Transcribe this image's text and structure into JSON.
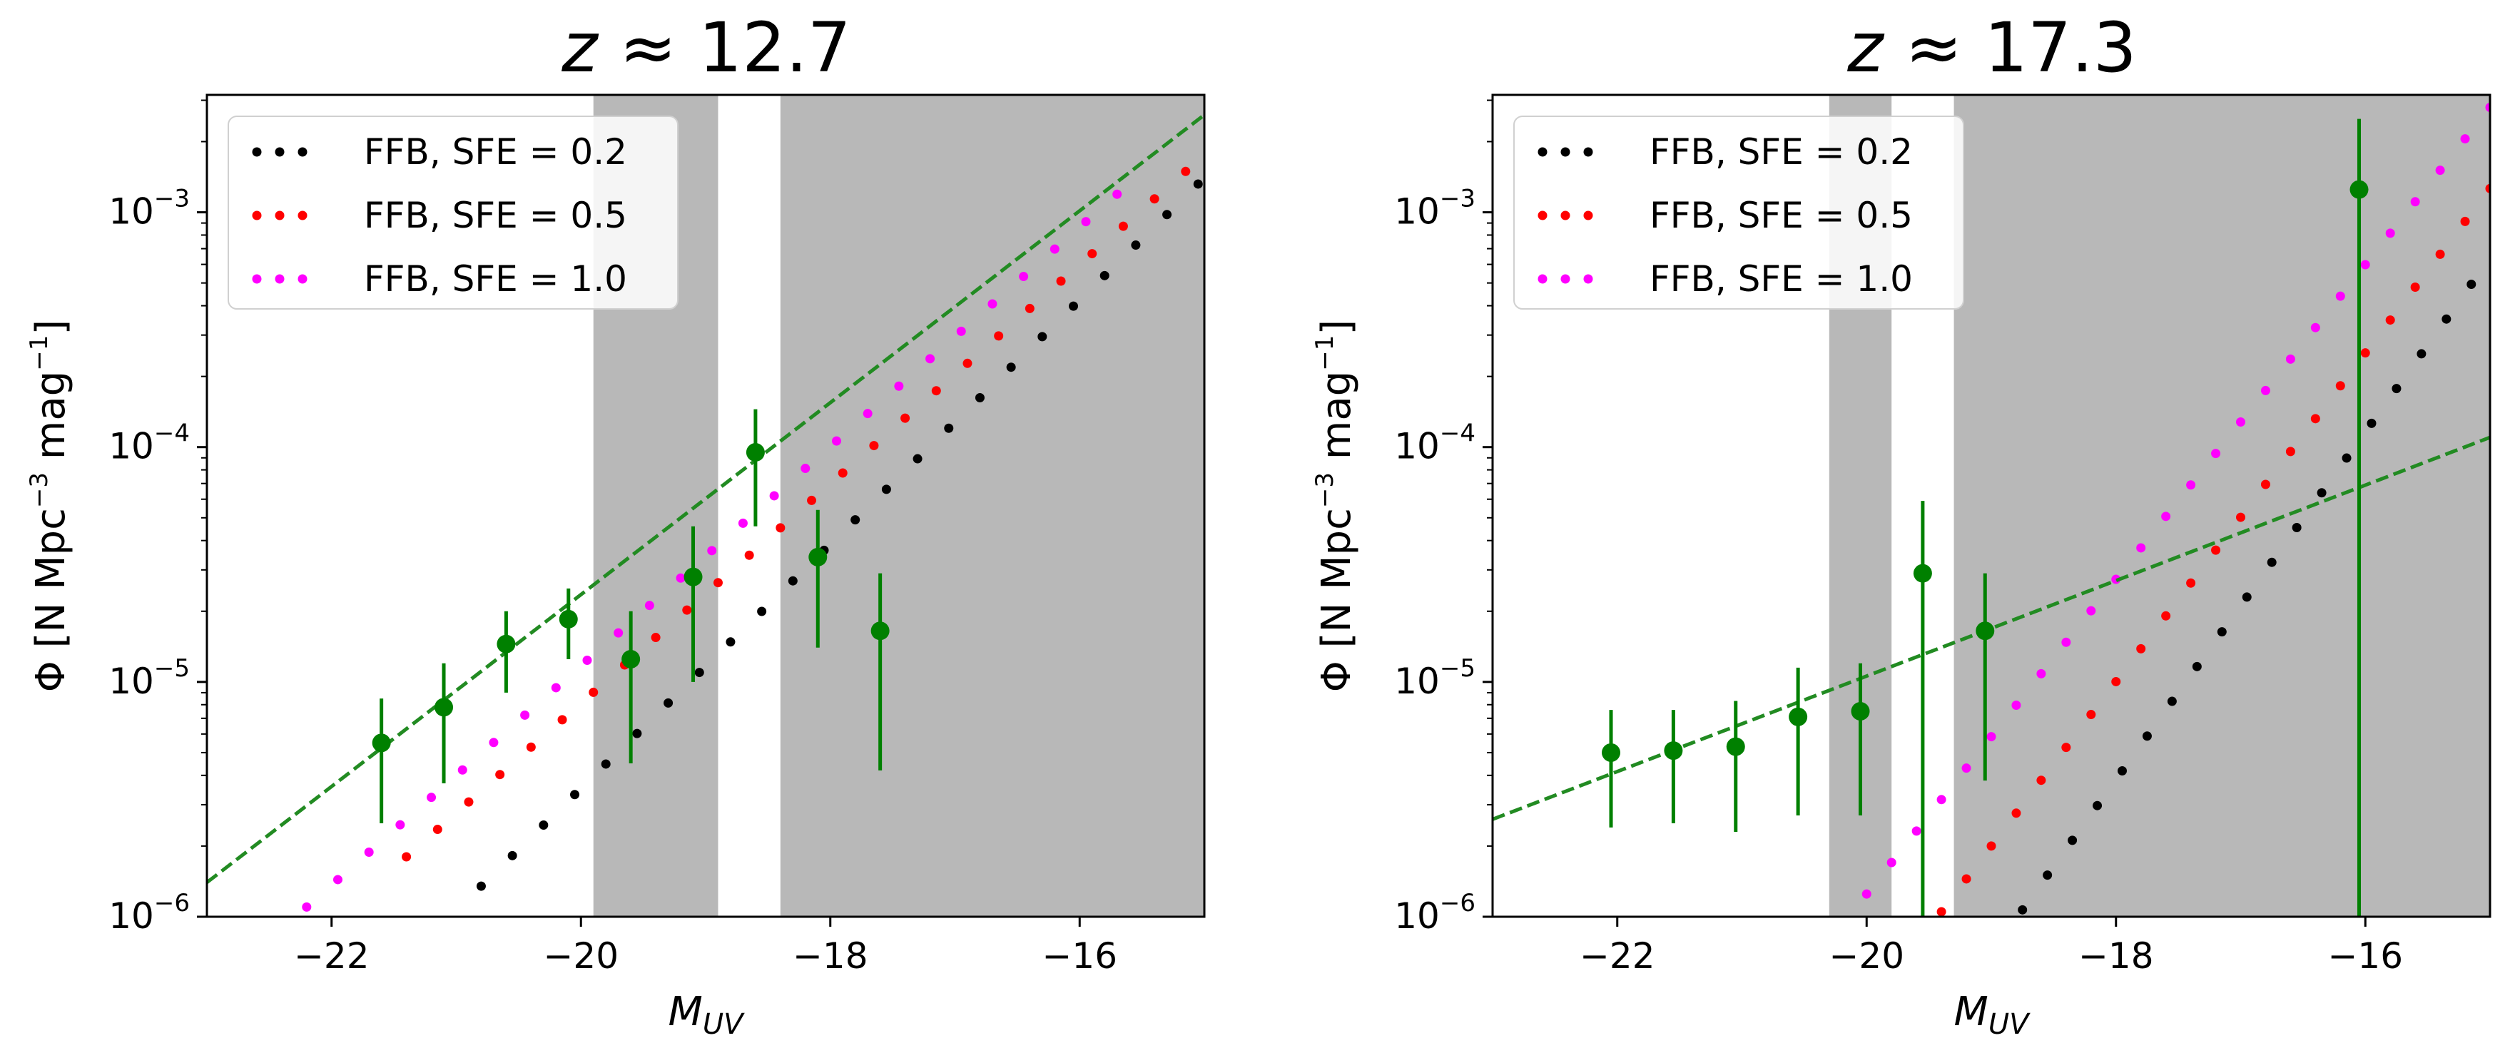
{
  "chart_data": [
    {
      "type": "scatter",
      "panel": "left",
      "title": "z ≈ 12.7",
      "title_var": "z",
      "title_rest": " ≈ 12.7",
      "xlabel_main": "M",
      "xlabel_sub": "UV",
      "ylabel_pre": "Φ [N Mpc",
      "ylabel_sup1": "−3",
      "ylabel_mid": " mag",
      "ylabel_sup2": "−1",
      "ylabel_post": "]",
      "xlim": [
        -23,
        -15
      ],
      "ylim_log10": [
        -6,
        -2.5
      ],
      "xticks": [
        {
          "v": -22,
          "label": "−22"
        },
        {
          "v": -20,
          "label": "−20"
        },
        {
          "v": -18,
          "label": "−18"
        },
        {
          "v": -16,
          "label": "−16"
        }
      ],
      "yticks": [
        {
          "v": -6,
          "base": "10",
          "exp": "−6"
        },
        {
          "v": -5,
          "base": "10",
          "exp": "−5"
        },
        {
          "v": -4,
          "base": "10",
          "exp": "−4"
        },
        {
          "v": -3,
          "base": "10",
          "exp": "−3"
        }
      ],
      "shaded_x": [
        [
          -19.9,
          -18.9
        ],
        [
          -18.4,
          -15
        ]
      ],
      "series": [
        {
          "name": "FFB, SFE = 0.2",
          "color": "#000000",
          "x0": -20.8,
          "y0": 1.35e-06,
          "dx": 0.25,
          "slope": 0.52,
          "n": 24
        },
        {
          "name": "FFB, SFE = 0.5",
          "color": "#ff0000",
          "x0": -21.4,
          "y0": 1.8e-06,
          "dx": 0.25,
          "slope": 0.467,
          "n": 26
        },
        {
          "name": "FFB, SFE = 1.0",
          "color": "#ff00ff",
          "x0": -22.2,
          "y0": 1.1e-06,
          "dx": 0.25,
          "slope": 0.467,
          "n": 27
        }
      ],
      "legend": [
        {
          "label": "FFB, SFE = 0.2",
          "color": "#000000"
        },
        {
          "label": "FFB, SFE = 0.5",
          "color": "#ff0000"
        },
        {
          "label": "FFB, SFE = 1.0",
          "color": "#ff00ff"
        }
      ],
      "fit_line": {
        "color": "#228B22",
        "x": [
          -23,
          -15
        ],
        "y": [
          1.4e-06,
          0.0026
        ]
      },
      "observed": {
        "color": "#008000",
        "points": [
          {
            "x": -21.6,
            "y": 5.5e-06,
            "lo": 2.5e-06,
            "hi": 8.5e-06
          },
          {
            "x": -21.1,
            "y": 7.8e-06,
            "lo": 3.7e-06,
            "hi": 1.2e-05
          },
          {
            "x": -20.6,
            "y": 1.45e-05,
            "lo": 9e-06,
            "hi": 2e-05
          },
          {
            "x": -20.1,
            "y": 1.85e-05,
            "lo": 1.25e-05,
            "hi": 2.5e-05
          },
          {
            "x": -19.6,
            "y": 1.25e-05,
            "lo": 4.5e-06,
            "hi": 2e-05
          },
          {
            "x": -19.1,
            "y": 2.8e-05,
            "lo": 1e-05,
            "hi": 4.6e-05
          },
          {
            "x": -18.6,
            "y": 9.5e-05,
            "lo": 4.6e-05,
            "hi": 0.000145
          },
          {
            "x": -18.1,
            "y": 3.4e-05,
            "lo": 1.4e-05,
            "hi": 5.4e-05
          },
          {
            "x": -17.6,
            "y": 1.65e-05,
            "lo": 4.2e-06,
            "hi": 2.9e-05
          }
        ]
      }
    },
    {
      "type": "scatter",
      "panel": "right",
      "title": "z ≈ 17.3",
      "title_var": "z",
      "title_rest": " ≈ 17.3",
      "xlabel_main": "M",
      "xlabel_sub": "UV",
      "ylabel_pre": "Φ [N Mpc",
      "ylabel_sup1": "−3",
      "ylabel_mid": " mag",
      "ylabel_sup2": "−1",
      "ylabel_post": "]",
      "xlim": [
        -23,
        -15
      ],
      "ylim_log10": [
        -6,
        -2.5
      ],
      "xticks": [
        {
          "v": -22,
          "label": "−22"
        },
        {
          "v": -20,
          "label": "−20"
        },
        {
          "v": -18,
          "label": "−18"
        },
        {
          "v": -16,
          "label": "−16"
        }
      ],
      "yticks": [
        {
          "v": -6,
          "base": "10",
          "exp": "−6"
        },
        {
          "v": -5,
          "base": "10",
          "exp": "−5"
        },
        {
          "v": -4,
          "base": "10",
          "exp": "−4"
        },
        {
          "v": -3,
          "base": "10",
          "exp": "−3"
        }
      ],
      "shaded_x": [
        [
          -20.3,
          -19.8
        ],
        [
          -19.3,
          -15
        ]
      ],
      "series": [
        {
          "name": "FFB, SFE = 0.2",
          "color": "#000000",
          "x0": -18.75,
          "y0": 1.07e-06,
          "dx": 0.2,
          "slope": 0.74,
          "n": 20
        },
        {
          "name": "FFB, SFE = 0.5",
          "color": "#ff0000",
          "x0": -19.4,
          "y0": 1.05e-06,
          "dx": 0.2,
          "slope": 0.7,
          "n": 23
        },
        {
          "name": "FFB, SFE = 1.0",
          "color": "#ff00ff",
          "x0": -20.0,
          "y0": 1.25e-06,
          "dx": 0.2,
          "slope": 0.67,
          "n": 26
        }
      ],
      "legend": [
        {
          "label": "FFB, SFE = 0.2",
          "color": "#000000"
        },
        {
          "label": "FFB, SFE = 0.5",
          "color": "#ff0000"
        },
        {
          "label": "FFB, SFE = 1.0",
          "color": "#ff00ff"
        }
      ],
      "fit_line": {
        "color": "#228B22",
        "x": [
          -23,
          -15
        ],
        "y": [
          2.6e-06,
          0.00011
        ]
      },
      "observed": {
        "color": "#008000",
        "points": [
          {
            "x": -22.05,
            "y": 5e-06,
            "lo": 2.4e-06,
            "hi": 7.6e-06
          },
          {
            "x": -21.55,
            "y": 5.1e-06,
            "lo": 2.5e-06,
            "hi": 7.6e-06
          },
          {
            "x": -21.05,
            "y": 5.3e-06,
            "lo": 2.3e-06,
            "hi": 8.3e-06
          },
          {
            "x": -20.55,
            "y": 7.1e-06,
            "lo": 2.7e-06,
            "hi": 1.15e-05
          },
          {
            "x": -20.05,
            "y": 7.5e-06,
            "lo": 2.7e-06,
            "hi": 1.2e-05
          },
          {
            "x": -19.55,
            "y": 2.9e-05,
            "lo": 5e-07,
            "hi": 5.9e-05
          },
          {
            "x": -19.05,
            "y": 1.65e-05,
            "lo": 3.8e-06,
            "hi": 2.9e-05
          },
          {
            "x": -16.05,
            "y": 0.00125,
            "lo": 5e-07,
            "hi": 0.0025
          }
        ]
      }
    }
  ]
}
